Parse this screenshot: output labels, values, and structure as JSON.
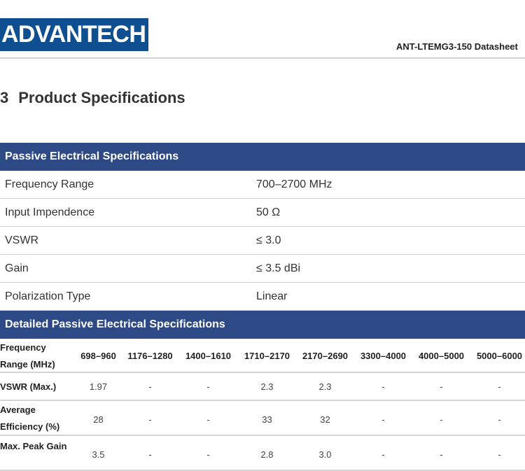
{
  "header": {
    "logo_text": "ADVANTECH",
    "doc_name": "ANT-LTEMG3-150  Datasheet",
    "brand_color": "#0d4f91"
  },
  "section": {
    "number": "3",
    "title": "Product Specifications"
  },
  "passive": {
    "title": "Passive Electrical Specifications",
    "rows": [
      {
        "label": "Frequency Range",
        "value": "700–2700 MHz"
      },
      {
        "label": "Input Impendence",
        "value": "50 Ω"
      },
      {
        "label": "VSWR",
        "value": "≤ 3.0"
      },
      {
        "label": "Gain",
        "value": "≤ 3.5 dBi"
      },
      {
        "label": "Polarization Type",
        "value": "Linear"
      }
    ]
  },
  "detailed": {
    "title": "Detailed Passive Electrical Specifications",
    "header_label": [
      "Frequency",
      "Range (MHz)"
    ],
    "columns": [
      "698–960",
      "1176–1280",
      "1400–1610",
      "1710–2170",
      "2170–2690",
      "3300–4000",
      "4000–5000",
      "5000–6000"
    ],
    "rows": [
      {
        "label": [
          "VSWR (Max.)"
        ],
        "values": [
          "1.97",
          "-",
          "-",
          "2.3",
          "2.3",
          "-",
          "-",
          "-"
        ]
      },
      {
        "label": [
          "Average",
          "Efficiency (%)"
        ],
        "values": [
          "28",
          "-",
          "-",
          "33",
          "32",
          "-",
          "-",
          "-"
        ]
      },
      {
        "label": [
          "Max. Peak Gain"
        ],
        "values": [
          "3.5",
          "-",
          "-",
          "2.8",
          "3.0",
          "-",
          "-",
          "-"
        ]
      }
    ]
  }
}
